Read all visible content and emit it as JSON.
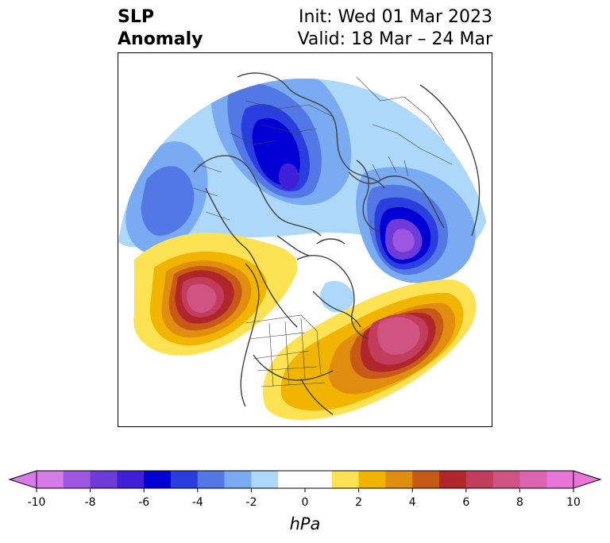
{
  "header": {
    "title_line1": "SLP",
    "title_line2": "Anomaly",
    "init_label": "Init: Wed 01 Mar 2023",
    "valid_label": "Valid: 18 Mar – 24 Mar"
  },
  "colorbar": {
    "unit": "hPa",
    "ticks": [
      "-10",
      "-8",
      "-6",
      "-4",
      "-2",
      "0",
      "2",
      "4",
      "6",
      "8",
      "10"
    ],
    "colors": [
      "#d67be6",
      "#9e55e0",
      "#6e3ad8",
      "#3f20d6",
      "#0000d4",
      "#2a3ee0",
      "#5378e6",
      "#79aaf2",
      "#aed8fa",
      "#ffffff",
      "#fde254",
      "#f1b500",
      "#e08d10",
      "#c85a18",
      "#b0262a",
      "#c23c5c",
      "#d15382",
      "#dd62b0",
      "#e874d8"
    ],
    "extend": "both"
  },
  "map": {
    "projection": "north-polar-stereographic",
    "features": [
      "coastlines",
      "country-borders",
      "us-state-borders"
    ],
    "anomaly_centers": [
      {
        "region": "northeast-atlantic-north-sea",
        "sign": "negative",
        "peak": "-8"
      },
      {
        "region": "central-siberia",
        "sign": "negative",
        "peak": "-6"
      },
      {
        "region": "bering-sea",
        "sign": "negative",
        "peak": "-4"
      },
      {
        "region": "north-pacific-alaska",
        "sign": "positive",
        "peak": "8"
      },
      {
        "region": "north-atlantic-east-of-canada",
        "sign": "positive",
        "peak": "8"
      }
    ]
  }
}
